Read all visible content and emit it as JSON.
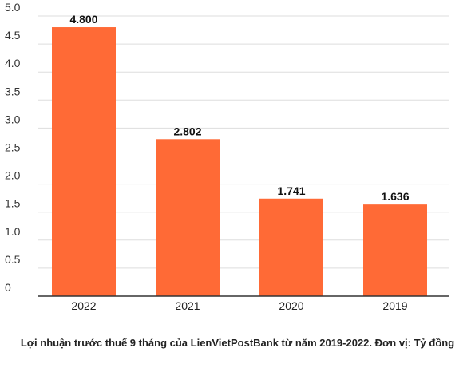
{
  "chart_data": {
    "type": "bar",
    "categories": [
      "2022",
      "2021",
      "2020",
      "2019"
    ],
    "values": [
      4.8,
      2.802,
      1.741,
      1.636
    ],
    "data_labels": [
      "4.800",
      "2.802",
      "1.741",
      "1.636"
    ],
    "ylim": [
      0,
      5.0
    ],
    "yticks": [
      0,
      0.5,
      1.0,
      1.5,
      2.0,
      2.5,
      3.0,
      3.5,
      4.0,
      4.5,
      5.0
    ],
    "ytick_labels": [
      "0",
      "0.5",
      "1.0",
      "1.5",
      "2.0",
      "2.5",
      "3.0",
      "3.5",
      "4.0",
      "4.5",
      "5.0"
    ],
    "grid": true,
    "bar_color": "#ff6a36",
    "grid_color": "#dddddd",
    "axis_color": "#333333"
  },
  "caption": "Lợi nhuận trước thuế 9 tháng của LienVietPostBank từ năm 2019-2022. Đơn vị: Tỷ đồng"
}
